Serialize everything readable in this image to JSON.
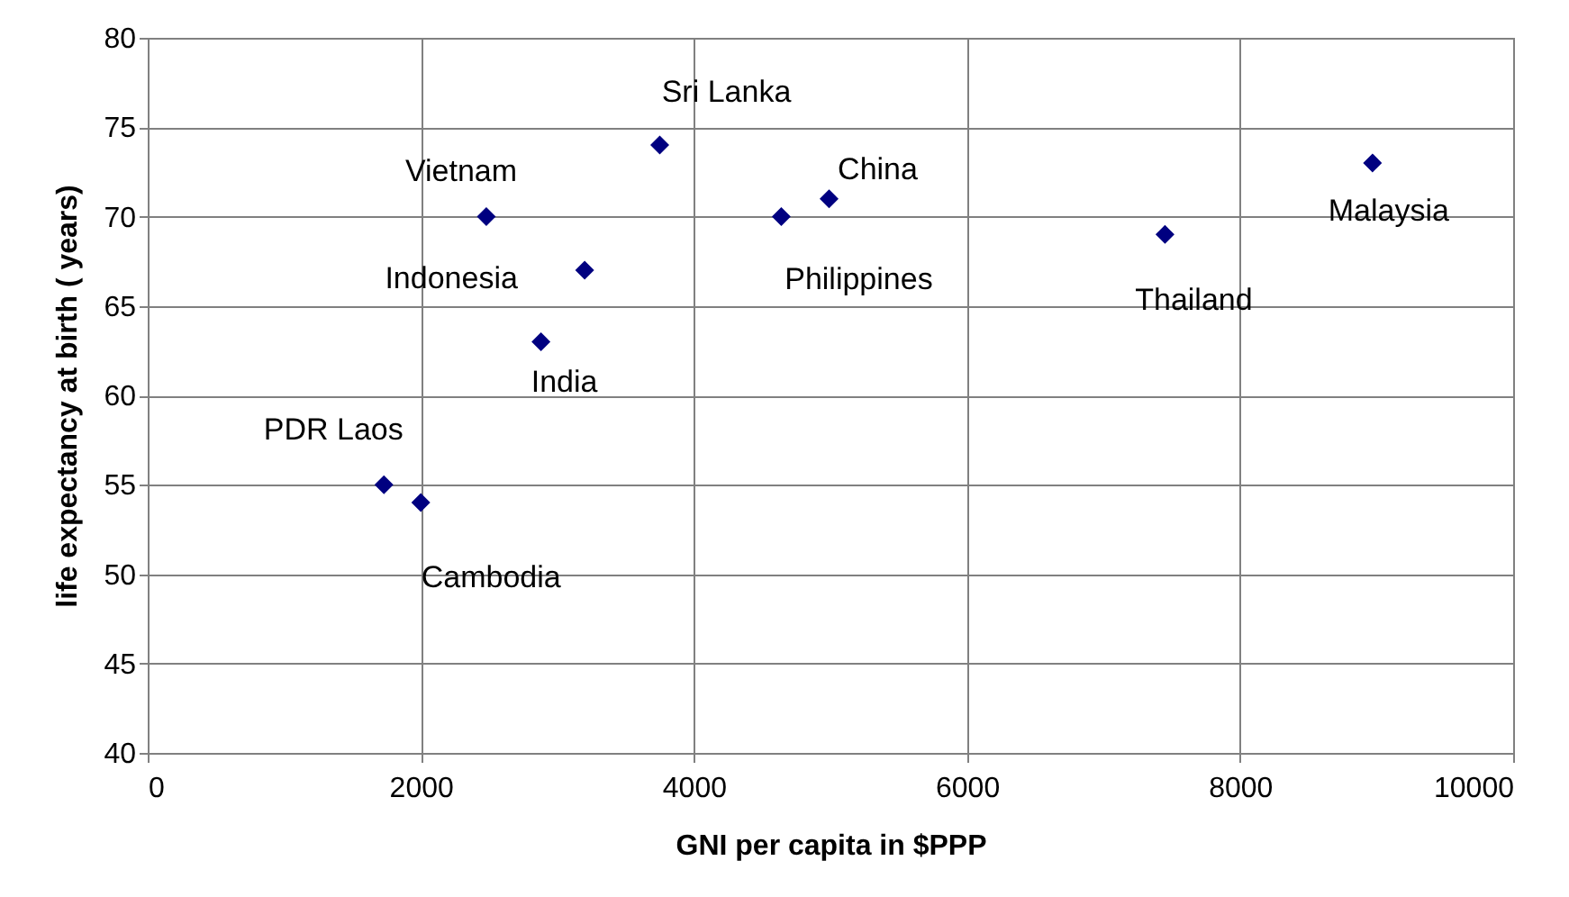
{
  "chart_data": {
    "type": "scatter",
    "xlabel": "GNI per capita in $PPP",
    "ylabel": "life expectancy at birth ( years)",
    "x": [
      1730,
      2000,
      2480,
      2880,
      3200,
      3750,
      4640,
      4990,
      7450,
      8970
    ],
    "series": [
      {
        "color": "#000080",
        "values": [
          55,
          54,
          70,
          63,
          67,
          74,
          70,
          71,
          69,
          73
        ]
      }
    ],
    "annotations": [
      {
        "text": "PDR Laos",
        "x": 1730,
        "y": 55
      },
      {
        "text": "Cambodia",
        "x": 2000,
        "y": 54
      },
      {
        "text": "Vietnam",
        "x": 2480,
        "y": 70
      },
      {
        "text": "India",
        "x": 2880,
        "y": 63
      },
      {
        "text": "Indonesia",
        "x": 3200,
        "y": 67
      },
      {
        "text": "Sri Lanka",
        "x": 3750,
        "y": 74
      },
      {
        "text": "Philippines",
        "x": 4640,
        "y": 70
      },
      {
        "text": "China",
        "x": 4990,
        "y": 71
      },
      {
        "text": "Thailand",
        "x": 7450,
        "y": 69
      },
      {
        "text": "Malaysia",
        "x": 8970,
        "y": 73
      }
    ],
    "xlim": [
      0,
      10000
    ],
    "xticks": [
      0,
      2000,
      4000,
      6000,
      8000,
      10000
    ],
    "ylim": [
      40,
      80
    ],
    "yticks": [
      40,
      45,
      50,
      55,
      60,
      65,
      70,
      75,
      80
    ],
    "grid": true,
    "marker": "diamond"
  }
}
